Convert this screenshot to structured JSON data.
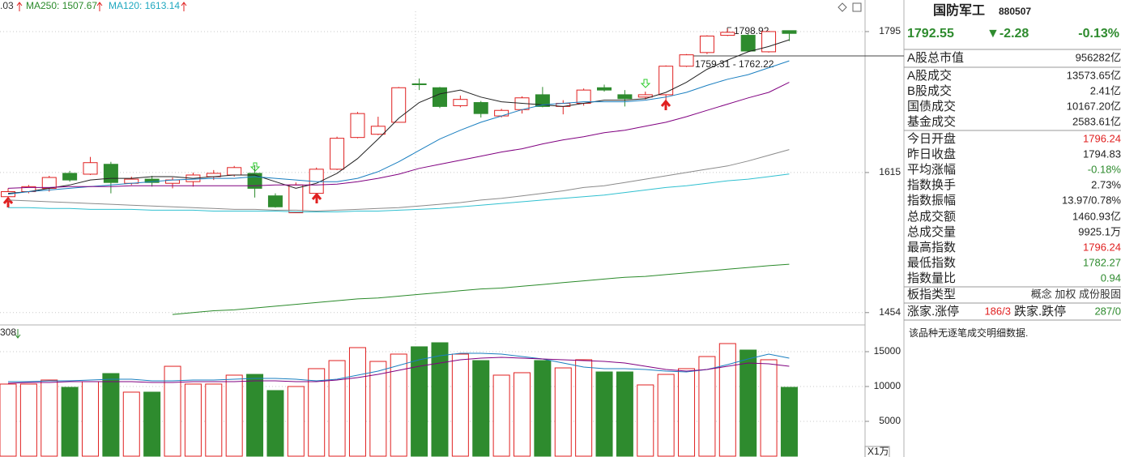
{
  "chart_data": [
    {
      "type": "candlestick",
      "header": [
        {
          "text": ".03",
          "color": "#333333"
        },
        {
          "text": "MA250: 1507.67",
          "color": "#2a8a2a"
        },
        {
          "text": "MA120: 1613.14",
          "color": "#20a8c0"
        }
      ],
      "open": [
        1586,
        1592,
        1596,
        1614,
        1613,
        1625,
        1602,
        1607,
        1602,
        1604,
        1610,
        1612,
        1614,
        1587,
        1567,
        1590,
        1619,
        1658,
        1662,
        1677,
        1726,
        1721,
        1698,
        1702,
        1685,
        1693,
        1712,
        1697,
        1701,
        1721,
        1712,
        1709,
        1712,
        1749,
        1767,
        1790,
        1790,
        1768,
        1796.24
      ],
      "high": [
        1596,
        1600,
        1611,
        1617,
        1634,
        1628,
        1610,
        1611,
        1609,
        1615,
        1618,
        1623,
        1624,
        1590,
        1603,
        1621,
        1659,
        1690,
        1684,
        1722,
        1733,
        1722,
        1711,
        1704,
        1694,
        1710,
        1722,
        1705,
        1720,
        1725,
        1718,
        1716,
        1750,
        1765,
        1790,
        1798.92,
        1792,
        1796,
        1796.24
      ],
      "low": [
        1583,
        1590,
        1592,
        1604,
        1612,
        1590,
        1600,
        1598,
        1596,
        1598,
        1606,
        1610,
        1585,
        1573,
        1567,
        1590,
        1618,
        1657,
        1661,
        1677,
        1718,
        1695,
        1696,
        1683,
        1683,
        1688,
        1696,
        1687,
        1698,
        1716,
        1697,
        1706,
        1699,
        1748,
        1765,
        1789,
        1768,
        1767,
        1782.27
      ],
      "close": [
        1592,
        1598,
        1609,
        1606,
        1627,
        1603,
        1607,
        1603,
        1606,
        1612,
        1614,
        1621,
        1596,
        1574,
        1600,
        1619,
        1657,
        1688,
        1672,
        1721,
        1725,
        1697,
        1706,
        1688,
        1692,
        1708,
        1697,
        1701,
        1718,
        1718,
        1707,
        1712,
        1749,
        1764,
        1789,
        1794,
        1769,
        1795,
        1792.55
      ],
      "up_color": "#e02020",
      "down_color": "#2e8b2e",
      "log": true,
      "ylim": [
        1441.5,
        1838
      ],
      "yticks": [
        1454,
        1615,
        1795
      ],
      "grid": true,
      "series": [
        {
          "color": "#222222",
          "values": [
            1590,
            1592,
            1596,
            1600,
            1606,
            1608,
            1608,
            1610,
            1610,
            1608,
            1610,
            1612,
            1612,
            1604,
            1596,
            1602,
            1614,
            1632,
            1656,
            1682,
            1702,
            1713,
            1718,
            1709,
            1703,
            1701,
            1699,
            1697,
            1701,
            1705,
            1705,
            1707,
            1715,
            1728,
            1745,
            1757,
            1768,
            1775,
            1784
          ]
        },
        {
          "color": "#1a7fc0",
          "values": [
            1589,
            1592,
            1594,
            1596,
            1598,
            1600,
            1602,
            1604,
            1606,
            1607,
            1608,
            1608,
            1610,
            1608,
            1606,
            1604,
            1604,
            1608,
            1616,
            1628,
            1642,
            1656,
            1667,
            1677,
            1685,
            1693,
            1699,
            1701,
            1703,
            1703,
            1703,
            1705,
            1709,
            1715,
            1724,
            1732,
            1738,
            1747,
            1756
          ]
        },
        {
          "color": "#800080",
          "values": [
            1596,
            1597,
            1597,
            1598,
            1598,
            1598,
            1599,
            1599,
            1599,
            1599,
            1599,
            1599,
            1599,
            1600,
            1600,
            1600,
            1601,
            1604,
            1608,
            1613,
            1620,
            1625,
            1630,
            1635,
            1640,
            1644,
            1650,
            1655,
            1659,
            1664,
            1667,
            1672,
            1677,
            1684,
            1692,
            1700,
            1708,
            1715,
            1728
          ]
        },
        {
          "color": "#8a8a8a",
          "values": [
            1582,
            1581,
            1580,
            1579,
            1578,
            1577,
            1576,
            1575,
            1574,
            1573,
            1572,
            1571,
            1571,
            1570,
            1570,
            1569,
            1570,
            1571,
            1572,
            1573,
            1575,
            1577,
            1579,
            1582,
            1584,
            1587,
            1590,
            1593,
            1597,
            1599,
            1603,
            1607,
            1611,
            1615,
            1619,
            1623,
            1629,
            1636,
            1643
          ]
        },
        {
          "color": "#30c0d0",
          "values": [
            1573,
            1573,
            1572,
            1572,
            1571,
            1571,
            1571,
            1570,
            1570,
            1570,
            1569,
            1569,
            1569,
            1569,
            1568,
            1568,
            1568,
            1569,
            1569,
            1570,
            1571,
            1572,
            1574,
            1576,
            1578,
            1580,
            1582,
            1584,
            1586,
            1588,
            1591,
            1594,
            1597,
            1599,
            1602,
            1605,
            1607,
            1610,
            1613.14
          ]
        },
        {
          "color": "#2a8a2a",
          "values": [
            null,
            null,
            null,
            null,
            null,
            null,
            null,
            null,
            1452,
            1454,
            1456,
            1457,
            1459,
            1461,
            1463,
            1465,
            1467,
            1469,
            1470,
            1472,
            1474,
            1476,
            1478,
            1480,
            1481,
            1483,
            1485,
            1487,
            1489,
            1491,
            1493,
            1494,
            1496,
            1498,
            1500,
            1502,
            1504,
            1506,
            1507.67
          ]
        }
      ],
      "annotations": [
        "1798.92",
        "1759.31 - 1762.22"
      ]
    },
    {
      "type": "volume",
      "header": "308",
      "values": [
        10350,
        10350,
        10930,
        9880,
        10700,
        11860,
        9190,
        9190,
        12900,
        10350,
        10350,
        11630,
        11740,
        9420,
        10000,
        12560,
        13720,
        15580,
        13600,
        14650,
        15700,
        16280,
        14650,
        13720,
        11630,
        11980,
        13720,
        12670,
        13840,
        12090,
        12090,
        10230,
        11740,
        12560,
        14300,
        16160,
        15230,
        13840,
        9880
      ],
      "ylim": [
        0,
        18720
      ],
      "yticks": [
        5000,
        10000,
        15000
      ],
      "grid": true,
      "unit_label": "X1万",
      "series": [
        {
          "color": "#1a7fc0",
          "values": [
            10700,
            10700,
            10810,
            10810,
            10930,
            11050,
            11050,
            10810,
            10810,
            10930,
            10930,
            11050,
            11160,
            11160,
            11050,
            10810,
            11050,
            11630,
            12210,
            13020,
            13840,
            14420,
            14770,
            14770,
            14650,
            14300,
            13950,
            13370,
            12790,
            12560,
            12560,
            12440,
            12210,
            12090,
            12440,
            13140,
            13950,
            14650,
            14070
          ]
        },
        {
          "color": "#800080",
          "values": [
            10470,
            10580,
            10580,
            10700,
            10700,
            10700,
            10700,
            10580,
            10580,
            10700,
            10700,
            10700,
            10810,
            10810,
            10700,
            10700,
            10930,
            11280,
            11740,
            12330,
            12910,
            13370,
            13840,
            14070,
            14190,
            14070,
            13950,
            13840,
            13720,
            13600,
            13370,
            12910,
            12440,
            12210,
            12440,
            12910,
            13370,
            13260,
            12910
          ]
        }
      ]
    }
  ],
  "quote": {
    "name": "国防军工",
    "code": "880507",
    "price": "1792.55",
    "change": "▼-2.28",
    "pct": "-0.13%",
    "price_color": "#2e8b2e",
    "rows": [
      {
        "label": "A股总市值",
        "value": "956282亿",
        "color": "#222222"
      },
      {
        "label": "A股成交",
        "value": "13573.65亿",
        "color": "#222222"
      },
      {
        "label": "B股成交",
        "value": "2.41亿",
        "color": "#222222"
      },
      {
        "label": "国债成交",
        "value": "10167.20亿",
        "color": "#222222"
      },
      {
        "label": "基金成交",
        "value": "2583.61亿",
        "color": "#222222"
      },
      {
        "label": "今日开盘",
        "value": "1796.24",
        "color": "#e02020"
      },
      {
        "label": "昨日收盘",
        "value": "1794.83",
        "color": "#222222"
      },
      {
        "label": "平均涨幅",
        "value": "-0.18%",
        "color": "#2e8b2e"
      },
      {
        "label": "指数换手",
        "value": "2.73%",
        "color": "#222222"
      },
      {
        "label": "指数振幅",
        "value": "13.97/0.78%",
        "color": "#222222"
      },
      {
        "label": "总成交额",
        "value": "1460.93亿",
        "color": "#222222"
      },
      {
        "label": "总成交量",
        "value": "9925.1万",
        "color": "#222222"
      },
      {
        "label": "最高指数",
        "value": "1796.24",
        "color": "#e02020"
      },
      {
        "label": "最低指数",
        "value": "1782.27",
        "color": "#2e8b2e"
      },
      {
        "label": "指数量比",
        "value": "0.94",
        "color": "#2e8b2e"
      },
      {
        "label": "板指类型",
        "value": "概念 加权 成份股固",
        "color": "#333333"
      }
    ],
    "breadth": {
      "up_label": "涨家.涨停",
      "up": "186/3",
      "down_label": "跌家.跌停",
      "down": "287/0"
    },
    "note": "该品种无逐笔成交明细数据."
  }
}
